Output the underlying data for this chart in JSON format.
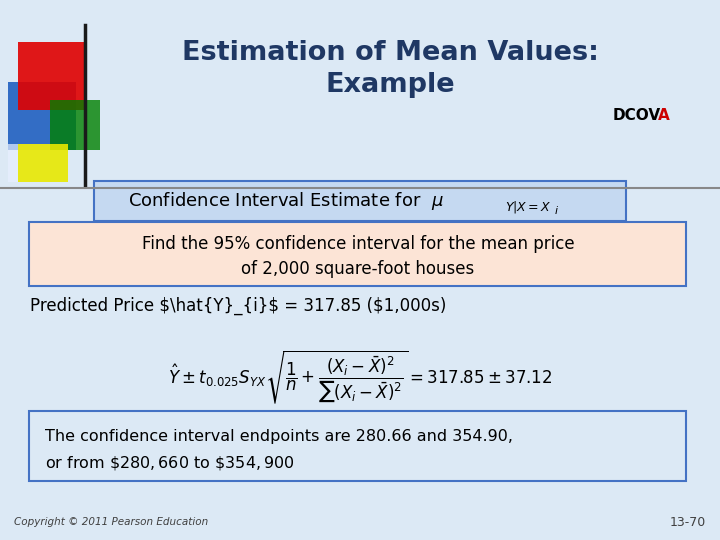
{
  "title_line1": "Estimation of Mean Values:",
  "title_line2": "Example",
  "dcova_text": "DCOV",
  "dcova_a": "A",
  "bg_color": "#dce9f5",
  "title_color": "#1f3864",
  "box1_bg": "#c5d9f1",
  "box1_border": "#4472c4",
  "box2_bg": "#fce4d6",
  "box2_border": "#4472c4",
  "box3_bg": "#dce9f5",
  "box3_border": "#4472c4",
  "copyright": "Copyright © 2011 Pearson Education",
  "slide_num": "13-70",
  "text_color": "#000000",
  "dcova_color": "#000000",
  "dcova_a_color": "#cc0000"
}
